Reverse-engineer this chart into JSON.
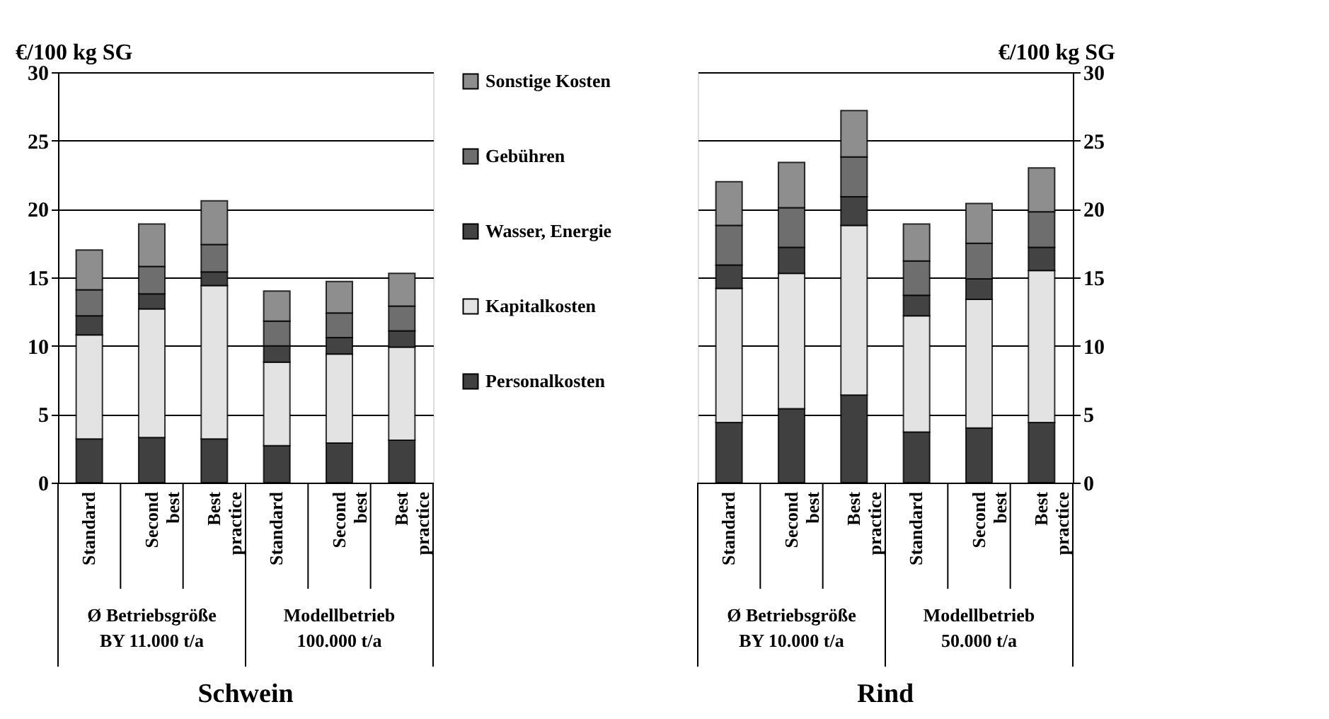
{
  "chart_data": [
    {
      "type": "bar",
      "stacked": true,
      "title": "Schwein",
      "ylabel": "€/100 kg SG",
      "categories": [
        "Standard",
        "Second best",
        "Best practice",
        "Standard",
        "Second best",
        "Best practice"
      ],
      "annotations": [
        "Ø Betriebsgröße\nBY 11.000 t/a",
        "Modellbetrieb\n100.000 t/a"
      ],
      "series": [
        {
          "name": "Personalkosten",
          "color": "#404040",
          "values": [
            3.2,
            3.3,
            3.2,
            2.7,
            2.9,
            3.1
          ]
        },
        {
          "name": "Kapitalkosten",
          "color": "#e3e3e3",
          "values": [
            7.6,
            9.4,
            11.2,
            6.1,
            6.5,
            6.8
          ]
        },
        {
          "name": "Wasser, Energie",
          "color": "#434343",
          "values": [
            1.4,
            1.1,
            1.0,
            1.2,
            1.2,
            1.2
          ]
        },
        {
          "name": "Gebühren",
          "color": "#6e6e6e",
          "values": [
            1.9,
            2.0,
            2.0,
            1.8,
            1.8,
            1.8
          ]
        },
        {
          "name": "Sonstige Kosten",
          "color": "#8e8e8e",
          "values": [
            2.9,
            3.1,
            3.2,
            2.2,
            2.3,
            2.4
          ]
        }
      ],
      "ylim": [
        0,
        30
      ],
      "yticks": [
        0,
        5,
        10,
        15,
        20,
        25,
        30
      ],
      "grid": "y",
      "legend": "right"
    },
    {
      "type": "bar",
      "stacked": true,
      "title": "Rind",
      "ylabel": "€/100 kg SG",
      "categories": [
        "Standard",
        "Second best",
        "Best practice",
        "Standard",
        "Second best",
        "Best practice"
      ],
      "annotations": [
        "Ø Betriebsgröße\nBY 10.000 t/a",
        "Modellbetrieb\n50.000 t/a"
      ],
      "series": [
        {
          "name": "Personalkosten",
          "color": "#404040",
          "values": [
            4.4,
            5.4,
            6.4,
            3.7,
            4.0,
            4.4
          ]
        },
        {
          "name": "Kapitalkosten",
          "color": "#e3e3e3",
          "values": [
            9.8,
            9.9,
            12.4,
            8.5,
            9.4,
            11.1
          ]
        },
        {
          "name": "Wasser, Energie",
          "color": "#434343",
          "values": [
            1.7,
            1.9,
            2.1,
            1.5,
            1.5,
            1.7
          ]
        },
        {
          "name": "Gebühren",
          "color": "#6e6e6e",
          "values": [
            2.9,
            2.9,
            2.9,
            2.5,
            2.6,
            2.6
          ]
        },
        {
          "name": "Sonstige Kosten",
          "color": "#8e8e8e",
          "values": [
            3.2,
            3.3,
            3.4,
            2.7,
            2.9,
            3.2
          ]
        }
      ],
      "ylim": [
        0,
        30
      ],
      "yticks": [
        0,
        5,
        10,
        15,
        20,
        25,
        30
      ],
      "grid": "y",
      "legend": "left"
    }
  ]
}
